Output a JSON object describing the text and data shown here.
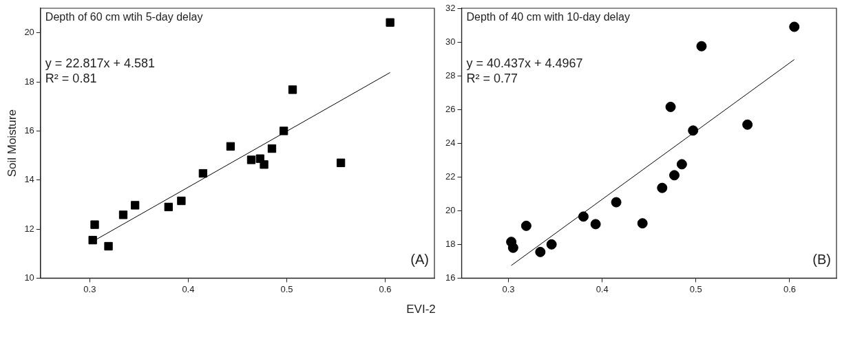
{
  "chart_data": [
    {
      "type": "scatter",
      "title": "Depth of 60 cm wtih 5-day delay",
      "xlabel": "EVI-2",
      "ylabel": "Soil Moisture",
      "annotations": [
        "y = 22.817x + 4.581",
        "R² = 0.81",
        "(A)"
      ],
      "xlim": [
        0.25,
        0.65
      ],
      "xticks": [
        0.3,
        0.4,
        0.5,
        0.6
      ],
      "ylim": [
        10,
        21
      ],
      "yticks": [
        10,
        12,
        14,
        16,
        18,
        20
      ],
      "grid": false,
      "legend": false,
      "series": [
        {
          "type": "scatter",
          "marker": "square",
          "color": "#000000",
          "x": [
            0.303,
            0.305,
            0.319,
            0.334,
            0.346,
            0.38,
            0.393,
            0.415,
            0.443,
            0.464,
            0.473,
            0.477,
            0.485,
            0.497,
            0.506,
            0.555,
            0.605
          ],
          "values": [
            11.55,
            12.18,
            11.3,
            12.58,
            12.97,
            12.9,
            13.15,
            14.27,
            15.37,
            14.82,
            14.87,
            14.63,
            15.28,
            16.0,
            17.68,
            14.7,
            20.42
          ]
        },
        {
          "type": "line",
          "marker": "none",
          "line_style": "solid",
          "color": "#000000",
          "x": [
            0.305,
            0.605
          ],
          "values": [
            11.54,
            18.38
          ]
        }
      ]
    },
    {
      "type": "scatter",
      "title": "Depth of 40 cm with 10-day delay",
      "annotations": [
        "y = 40.437x + 4.4967",
        "R² = 0.77",
        "(B)"
      ],
      "xlim": [
        0.25,
        0.65
      ],
      "xticks": [
        0.3,
        0.4,
        0.5,
        0.6
      ],
      "ylim": [
        16,
        32
      ],
      "yticks": [
        16,
        18,
        20,
        22,
        24,
        26,
        28,
        30,
        32
      ],
      "grid": false,
      "legend": false,
      "series": [
        {
          "type": "scatter",
          "marker": "circle",
          "color": "#000000",
          "x": [
            0.303,
            0.305,
            0.319,
            0.334,
            0.346,
            0.38,
            0.393,
            0.415,
            0.443,
            0.464,
            0.473,
            0.477,
            0.485,
            0.497,
            0.506,
            0.555,
            0.605
          ],
          "values": [
            18.15,
            17.8,
            19.1,
            17.55,
            18.0,
            19.65,
            19.2,
            20.5,
            19.25,
            21.35,
            26.15,
            22.1,
            22.75,
            24.75,
            29.75,
            25.1,
            30.9
          ]
        },
        {
          "type": "line",
          "marker": "none",
          "line_style": "solid",
          "color": "#000000",
          "x": [
            0.303,
            0.605
          ],
          "values": [
            16.75,
            28.96
          ]
        }
      ]
    }
  ]
}
